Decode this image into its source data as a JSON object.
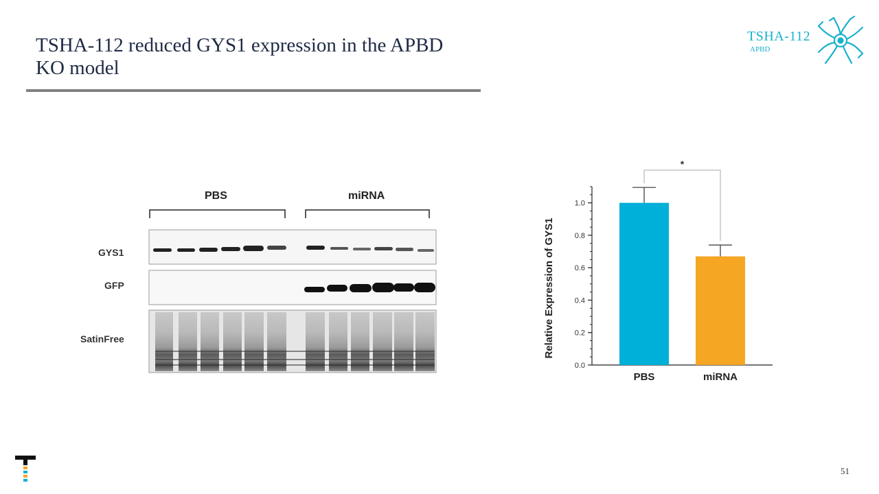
{
  "slide": {
    "title": "TSHA-112 reduced GYS1 expression in the APBD KO model",
    "page_number": "51"
  },
  "brand": {
    "name": "TSHA-112",
    "subtitle": "APBD",
    "color": "#1ab0cc"
  },
  "blot": {
    "group_labels": [
      "PBS",
      "miRNA"
    ],
    "row_labels": [
      "GYS1",
      "GFP",
      "SatinFree"
    ],
    "lanes_per_group": 6
  },
  "chart_data": {
    "type": "bar",
    "categories": [
      "PBS",
      "miRNA"
    ],
    "values": [
      1.0,
      0.67
    ],
    "errors": [
      0.095,
      0.07
    ],
    "colors": [
      "#00b0d8",
      "#f5a623"
    ],
    "ylabel": "Relative Expression of GYS1",
    "xlabel": "",
    "ylim": [
      0,
      1.1
    ],
    "yticks": [
      "0.0",
      "0.2",
      "0.4",
      "0.6",
      "0.8",
      "1.0"
    ],
    "significance": "*"
  }
}
